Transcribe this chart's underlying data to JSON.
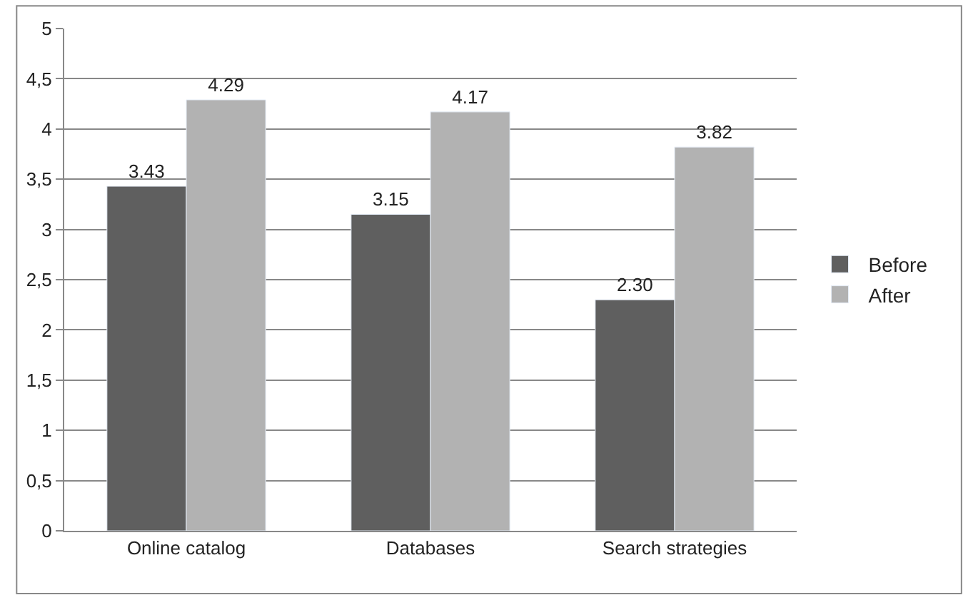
{
  "chart_data": {
    "type": "bar",
    "categories": [
      "Online catalog",
      "Databases",
      "Search strategies"
    ],
    "series": [
      {
        "name": "Before",
        "color": "#5f5f5f",
        "values": [
          3.43,
          3.15,
          2.3
        ],
        "value_labels": [
          "3.43",
          "3.15",
          "2.30"
        ]
      },
      {
        "name": "After",
        "color": "#b2b2b2",
        "values": [
          4.29,
          4.17,
          3.82
        ],
        "value_labels": [
          "4.29",
          "4.17",
          "3.82"
        ]
      }
    ],
    "ylim": [
      0,
      5
    ],
    "yticks": [
      0,
      {
        "value": 0.5,
        "label": "0,5"
      },
      1,
      {
        "value": 1.5,
        "label": "1,5"
      },
      2,
      {
        "value": 2.5,
        "label": "2,5"
      },
      3,
      {
        "value": 3.5,
        "label": "3,5"
      },
      4,
      {
        "value": 4.5,
        "label": "4,5"
      },
      5
    ],
    "grid": "y",
    "legend": "right"
  }
}
